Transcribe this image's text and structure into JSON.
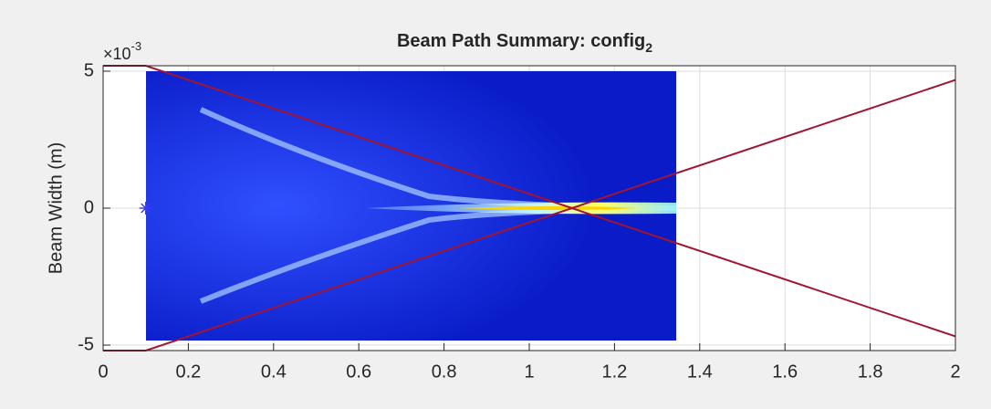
{
  "chart_data": {
    "type": "line",
    "title": "Beam Path Summary: config",
    "title_subscript": "2",
    "y_label": "Beam Width (m)",
    "y_multiplier": "×10",
    "y_multiplier_exponent": "-3",
    "x": [
      0,
      0.1,
      2
    ],
    "series": [
      {
        "color": "#a2142f",
        "values": [
          5.2,
          5.2,
          -4.68
        ]
      },
      {
        "color": "#a2142f",
        "values": [
          -5.2,
          -5.2,
          4.68
        ]
      }
    ],
    "markers": {
      "color": "#3b3bff",
      "x": [
        0.1
      ],
      "values": [
        0
      ]
    },
    "xlim": [
      0,
      2
    ],
    "ylim": [
      -5.2,
      5.2
    ],
    "xticks": [
      0,
      0.2,
      0.4,
      0.6,
      0.8,
      1,
      1.2,
      1.4,
      1.6,
      1.8,
      2
    ],
    "yticks": [
      -5,
      0,
      5
    ],
    "grid": true
  }
}
